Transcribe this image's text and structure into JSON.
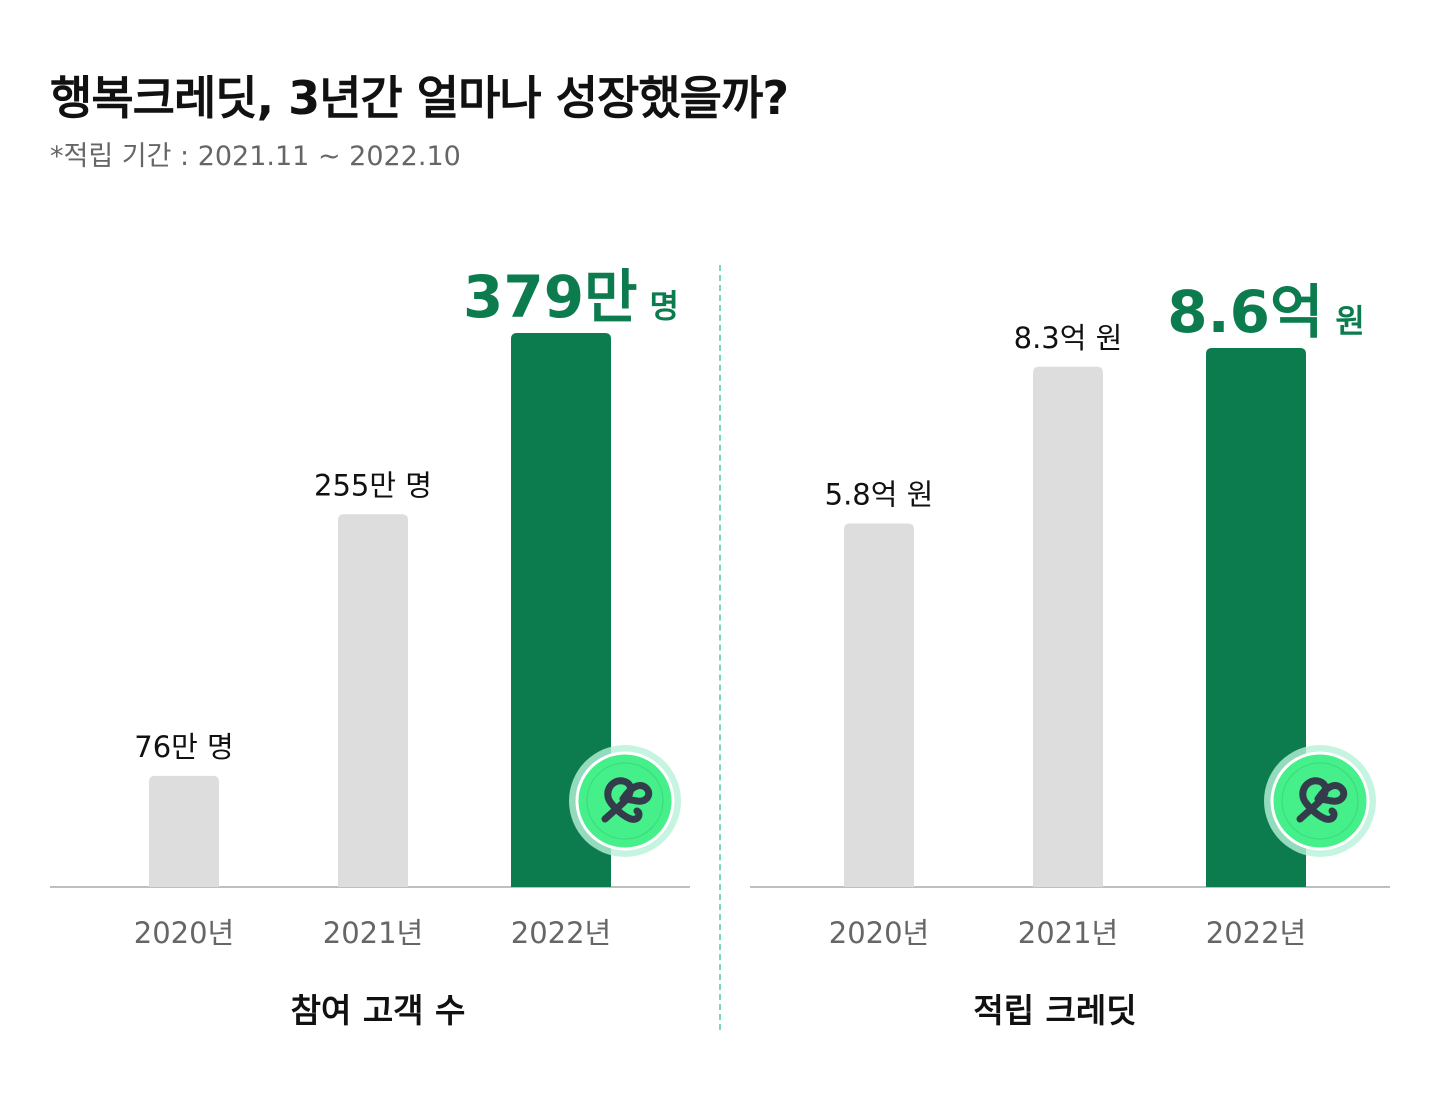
{
  "title": "행복크레딧, 3년간 얼마나 성장했을까?",
  "subtitle": "*적립 기간 : 2021.11 ~ 2022.10",
  "colors": {
    "highlight": "#0c7c4e",
    "normal": "#dddddd",
    "badge": "#45ef8a",
    "badge_ring": "#b6f2d9",
    "logo_stroke": "#343b4a",
    "divider": "#7fd6b4"
  },
  "chart_data": [
    {
      "type": "bar",
      "title": "참여 고객 수",
      "categories": [
        "2020년",
        "2021년",
        "2022년"
      ],
      "values": [
        76,
        255,
        379
      ],
      "unit": "만 명",
      "data_labels": [
        "76만 명",
        "255만 명",
        "379만"
      ],
      "highlight_label_unit": "명",
      "highlight_index": 2,
      "badge_icon": "happy-credit-logo-icon",
      "grid": false
    },
    {
      "type": "bar",
      "title": "적립 크레딧",
      "categories": [
        "2020년",
        "2021년",
        "2022년"
      ],
      "values": [
        5.8,
        8.3,
        8.6
      ],
      "unit": "억 원",
      "data_labels": [
        "5.8억 원",
        "8.3억 원",
        "8.6억"
      ],
      "highlight_label_unit": "원",
      "highlight_index": 2,
      "badge_icon": "happy-credit-logo-icon",
      "grid": false
    }
  ]
}
